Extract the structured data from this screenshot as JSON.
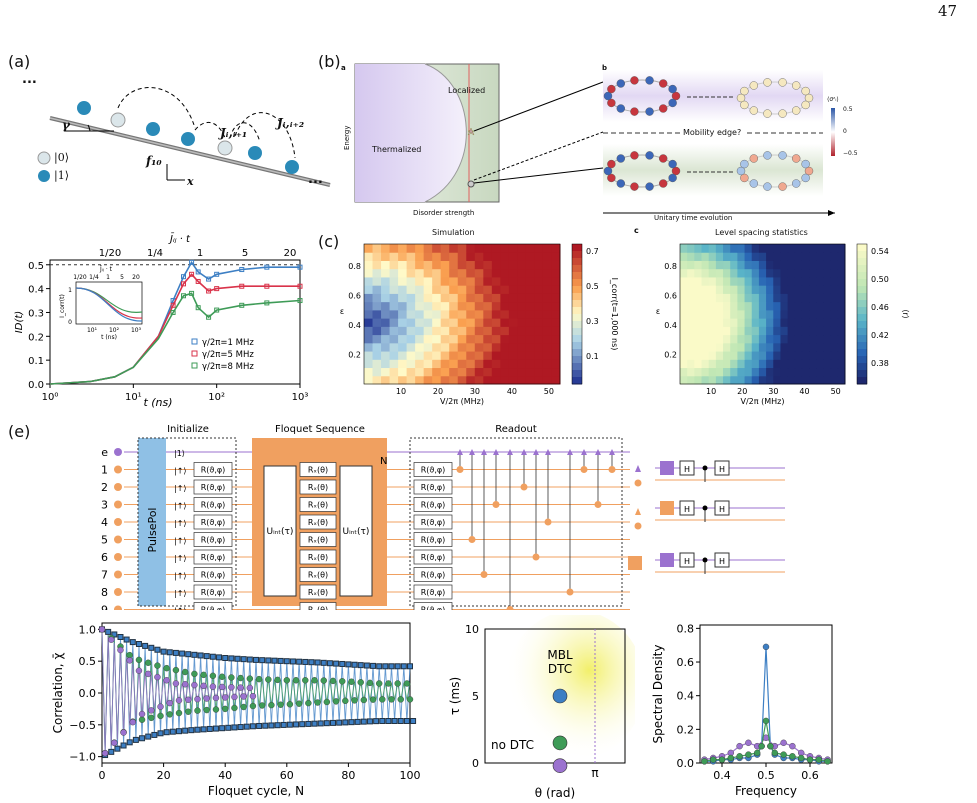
{
  "page": {
    "number": "47"
  },
  "panel_a": {
    "label": "(a)",
    "dots_left": "...",
    "dots_right": "...",
    "gamma": "γ",
    "legend0": "|0⟩",
    "legend1": "|1⟩",
    "f10": "f₁₀",
    "x": "x",
    "J1": "Jᵢ,ᵢ₊₁",
    "J2": "Jᵢ,ᵢ₊₂",
    "chart": {
      "top_axis_label": "J̄ᵢⱼ · t",
      "top_ticks": [
        "1/20",
        "1/4",
        "1",
        "5",
        "20"
      ],
      "ylabel": "ID(t)",
      "xlabel": "t (ns)",
      "yticks": [
        "0.0",
        "0.1",
        "0.2",
        "0.3",
        "0.4",
        "0.5"
      ],
      "xticks": [
        "10⁰",
        "10¹",
        "10²",
        "10³"
      ],
      "legend": [
        "γ/2π=1 MHz",
        "γ/2π=5 MHz",
        "γ/2π=8 MHz"
      ],
      "inset_top_label": "J̄ᵢⱼ · t",
      "inset_top_ticks": [
        "1/20",
        "1/4",
        "1",
        "5",
        "20"
      ],
      "inset_ylabel": "I_corr(t)",
      "inset_xlabel": "t (ns)",
      "inset_xticks": [
        "10¹",
        "10²",
        "10³"
      ],
      "inset_yticks": [
        "0",
        "1"
      ]
    }
  },
  "panel_b": {
    "label": "(b)",
    "sub_a": "a",
    "sub_b": "b",
    "localized": "Localized",
    "thermalized": "Thermalized",
    "energy": "Energy",
    "disorder": "Disorder strength",
    "mobility_edge": "Mobility edge?",
    "unitary": "Unitary time evolution",
    "cbar_label": "⟨σᶻᵢ⟩",
    "cbar_ticks": [
      "0.5",
      "0",
      "−0.5"
    ]
  },
  "panel_c": {
    "label": "(c)",
    "title_left": "Simulation",
    "title_right": "Level spacing statistics",
    "right_corner": "c",
    "left_ylabel": "ε",
    "left_xlabel": "V/2π (MHz)",
    "left_xticks": [
      "10",
      "20",
      "30",
      "40",
      "50"
    ],
    "left_yticks": [
      "0.2",
      "0.4",
      "0.6",
      "0.8"
    ],
    "left_cbar_ticks": [
      "0.7",
      "0.5",
      "0.3",
      "0.1"
    ],
    "left_cbar_label": "I_corr(t=1,000 ns)",
    "right_ylabel": "ε",
    "right_xlabel": "V/2π (MHz)",
    "right_xticks": [
      "10",
      "20",
      "30",
      "40",
      "50"
    ],
    "right_yticks": [
      "0.2",
      "0.4",
      "0.6",
      "0.8"
    ],
    "right_cbar_ticks": [
      "0.54",
      "0.50",
      "0.46",
      "0.42",
      "0.38"
    ],
    "right_cbar_label": "⟨r⟩"
  },
  "panel_e": {
    "label": "(e)",
    "initialize": "Initialize",
    "floquet": "Floquet Sequence",
    "readout": "Readout",
    "pulsepol": "PulsePol",
    "qubits": [
      "e",
      "1",
      "2",
      "3",
      "4",
      "5",
      "6",
      "7",
      "8",
      "9"
    ],
    "ket1": "|1⟩",
    "ketup": "|↑⟩",
    "rgate": "R(ϑ,φ)",
    "rxgate": "Rₓ(θ)",
    "uint": "Uᵢₙₜ(τ)",
    "N": "N",
    "H": "H",
    "corr_chart": {
      "ylabel": "Correlation, χ̄",
      "xlabel": "Floquet cycle, N",
      "xticks": [
        "0",
        "20",
        "40",
        "60",
        "80",
        "100"
      ],
      "yticks": [
        "1.0",
        "0.5",
        "0.0",
        "−0.5",
        "−1.0"
      ]
    },
    "phase": {
      "ylabel": "τ (ms)",
      "xlabel": "θ (rad)",
      "yticks": [
        "10",
        "5",
        "0"
      ],
      "pi": "π",
      "mbl": "MBL",
      "dtc": "DTC",
      "nodtc": "no DTC"
    },
    "spectral": {
      "ylabel": "Spectral Density",
      "xlabel": "Frequency",
      "xticks": [
        "0.4",
        "0.5",
        "0.6"
      ],
      "yticks": [
        "0.8",
        "0.6",
        "0.4",
        "0.2",
        "0.0"
      ]
    }
  },
  "colors": {
    "blue": "#3d7fc4",
    "red": "#d9334a",
    "green": "#3e9b57",
    "purple": "#9b72cf",
    "orange": "#f0a060",
    "lightblue": "#8fc0e5"
  },
  "chart_data": [
    {
      "type": "line",
      "title": "",
      "xlabel": "t (ns)",
      "ylabel": "ID(t)",
      "xscale": "log",
      "xlim": [
        1,
        1000
      ],
      "ylim": [
        0,
        0.52
      ],
      "series": [
        {
          "name": "γ/2π=1 MHz",
          "x": [
            1,
            3,
            6,
            10,
            20,
            30,
            40,
            50,
            60,
            80,
            100,
            200,
            400,
            1000
          ],
          "y": [
            0.0,
            0.01,
            0.03,
            0.07,
            0.2,
            0.35,
            0.45,
            0.51,
            0.47,
            0.44,
            0.46,
            0.48,
            0.49,
            0.49
          ]
        },
        {
          "name": "γ/2π=5 MHz",
          "x": [
            1,
            3,
            6,
            10,
            20,
            30,
            40,
            50,
            60,
            80,
            100,
            200,
            400,
            1000
          ],
          "y": [
            0.0,
            0.01,
            0.03,
            0.07,
            0.2,
            0.33,
            0.42,
            0.46,
            0.43,
            0.39,
            0.4,
            0.41,
            0.41,
            0.41
          ]
        },
        {
          "name": "γ/2π=8 MHz",
          "x": [
            1,
            3,
            6,
            10,
            20,
            30,
            40,
            50,
            60,
            80,
            100,
            200,
            400,
            1000
          ],
          "y": [
            0.0,
            0.01,
            0.03,
            0.07,
            0.19,
            0.3,
            0.37,
            0.38,
            0.32,
            0.28,
            0.31,
            0.33,
            0.34,
            0.35
          ]
        }
      ]
    },
    {
      "type": "line",
      "title": "",
      "xlabel": "Floquet cycle, N",
      "ylabel": "Correlation, χ̄",
      "xlim": [
        0,
        100
      ],
      "ylim": [
        -1.1,
        1.1
      ],
      "series": [
        {
          "name": "",
          "color": "blue",
          "envelope_upper": [
            1.0,
            0.8,
            0.65,
            0.6,
            0.55,
            0.52,
            0.5,
            0.48,
            0.45,
            0.42,
            0.42
          ],
          "envelope_lower": [
            -1.0,
            -0.75,
            -0.62,
            -0.58,
            -0.55,
            -0.52,
            -0.5,
            -0.48,
            -0.46,
            -0.44,
            -0.44
          ]
        },
        {
          "name": "",
          "color": "green",
          "envelope_upper": [
            1.0,
            0.55,
            0.4,
            0.3,
            0.25,
            0.22,
            0.2,
            0.2,
            0.18,
            0.15,
            0.15
          ],
          "envelope_lower": [
            -1.0,
            -0.45,
            -0.35,
            -0.28,
            -0.25,
            -0.2,
            -0.18,
            -0.15,
            -0.12,
            -0.1,
            -0.1
          ]
        },
        {
          "name": "",
          "color": "purple",
          "envelope_upper": [
            1.0,
            0.35,
            0.15,
            0.1,
            0.08
          ],
          "envelope_lower": [
            -1.0,
            -0.35,
            -0.12,
            -0.08,
            -0.05
          ]
        }
      ]
    },
    {
      "type": "scatter",
      "title": "",
      "xlabel": "θ (rad)",
      "ylabel": "τ (ms)",
      "ylim": [
        0,
        10
      ],
      "points": [
        {
          "tau": 5,
          "color": "blue"
        },
        {
          "tau": 1.5,
          "color": "green"
        },
        {
          "tau": 0.4,
          "color": "purple"
        }
      ]
    },
    {
      "type": "line",
      "title": "",
      "xlabel": "Frequency",
      "ylabel": "Spectral Density",
      "xlim": [
        0.35,
        0.65
      ],
      "ylim": [
        0,
        0.8
      ],
      "series": [
        {
          "name": "",
          "color": "blue",
          "x": [
            0.36,
            0.38,
            0.4,
            0.42,
            0.44,
            0.46,
            0.48,
            0.49,
            0.5,
            0.51,
            0.52,
            0.54,
            0.56,
            0.58,
            0.6,
            0.62,
            0.64
          ],
          "y": [
            0.01,
            0.01,
            0.02,
            0.02,
            0.03,
            0.03,
            0.05,
            0.1,
            0.69,
            0.1,
            0.05,
            0.03,
            0.03,
            0.02,
            0.02,
            0.01,
            0.01
          ]
        },
        {
          "name": "",
          "color": "purple",
          "x": [
            0.36,
            0.38,
            0.4,
            0.42,
            0.44,
            0.46,
            0.48,
            0.5,
            0.52,
            0.54,
            0.56,
            0.58,
            0.6,
            0.62,
            0.64
          ],
          "y": [
            0.02,
            0.03,
            0.04,
            0.06,
            0.1,
            0.12,
            0.1,
            0.15,
            0.1,
            0.12,
            0.1,
            0.06,
            0.04,
            0.03,
            0.02
          ]
        },
        {
          "name": "",
          "color": "green",
          "x": [
            0.36,
            0.38,
            0.4,
            0.42,
            0.44,
            0.46,
            0.48,
            0.49,
            0.5,
            0.51,
            0.52,
            0.54,
            0.56,
            0.58,
            0.6,
            0.62,
            0.64
          ],
          "y": [
            0.01,
            0.02,
            0.02,
            0.03,
            0.04,
            0.05,
            0.06,
            0.1,
            0.25,
            0.1,
            0.06,
            0.05,
            0.04,
            0.03,
            0.02,
            0.02,
            0.01
          ]
        }
      ]
    }
  ]
}
